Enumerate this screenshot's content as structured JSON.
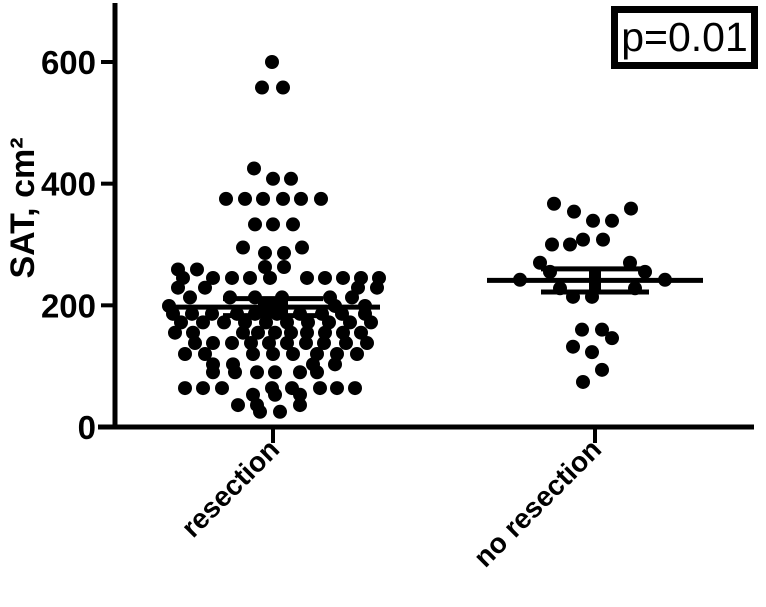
{
  "figure": {
    "p_label": "p=0.01",
    "background": "#ffffff",
    "ink": "#000000"
  },
  "chart_data": {
    "type": "scatter",
    "variant": "column-scatter-with-mean-sem-error-bars",
    "title": "",
    "xlabel": "",
    "ylabel": "SAT, cm²",
    "ylim": [
      0,
      700
    ],
    "yticks": [
      0,
      200,
      400,
      600
    ],
    "grid": false,
    "legend": null,
    "annotation": "p=0.01",
    "annotation_position": "top-right",
    "point_color": "#000000",
    "groups": [
      {
        "label": "resection",
        "mean": 197,
        "sem": 14,
        "points": [
          [
            600,
            -1
          ],
          [
            558,
            -11
          ],
          [
            558,
            10
          ],
          [
            425,
            -19
          ],
          [
            408,
            0
          ],
          [
            408,
            18
          ],
          [
            375,
            -47
          ],
          [
            375,
            -28
          ],
          [
            375,
            -10
          ],
          [
            375,
            10
          ],
          [
            375,
            28
          ],
          [
            375,
            48
          ],
          [
            333,
            -18
          ],
          [
            333,
            0
          ],
          [
            333,
            20
          ],
          [
            295,
            -30
          ],
          [
            295,
            29
          ],
          [
            286,
            -8
          ],
          [
            286,
            11
          ],
          [
            263,
            -8
          ],
          [
            263,
            11
          ],
          [
            259,
            -95
          ],
          [
            259,
            -76
          ],
          [
            245,
            -90
          ],
          [
            245,
            -60
          ],
          [
            245,
            -41
          ],
          [
            245,
            -23
          ],
          [
            245,
            -3
          ],
          [
            245,
            34
          ],
          [
            245,
            52
          ],
          [
            245,
            70
          ],
          [
            245,
            88
          ],
          [
            245,
            106
          ],
          [
            229,
            -95
          ],
          [
            229,
            -68
          ],
          [
            229,
            85
          ],
          [
            229,
            104
          ],
          [
            213,
            -83
          ],
          [
            213,
            -43
          ],
          [
            213,
            -18
          ],
          [
            213,
            9
          ],
          [
            213,
            57
          ],
          [
            213,
            79
          ],
          [
            199,
            -104
          ],
          [
            199,
            62
          ],
          [
            199,
            92
          ],
          [
            186,
            -100
          ],
          [
            186,
            -81
          ],
          [
            186,
            -61
          ],
          [
            186,
            -36
          ],
          [
            186,
            -18
          ],
          [
            186,
            4
          ],
          [
            186,
            27
          ],
          [
            186,
            49
          ],
          [
            186,
            69
          ],
          [
            186,
            92
          ],
          [
            172,
            -92
          ],
          [
            172,
            -70
          ],
          [
            172,
            -49
          ],
          [
            172,
            -28
          ],
          [
            172,
            -7
          ],
          [
            172,
            14
          ],
          [
            172,
            35
          ],
          [
            172,
            56
          ],
          [
            172,
            77
          ],
          [
            172,
            98
          ],
          [
            155,
            -98
          ],
          [
            155,
            -80
          ],
          [
            155,
            -30
          ],
          [
            155,
            -15
          ],
          [
            155,
            2
          ],
          [
            155,
            18
          ],
          [
            155,
            34
          ],
          [
            155,
            52
          ],
          [
            155,
            70
          ],
          [
            155,
            88
          ],
          [
            138,
            -78
          ],
          [
            138,
            -60
          ],
          [
            138,
            -41
          ],
          [
            138,
            -22
          ],
          [
            138,
            -4
          ],
          [
            138,
            14
          ],
          [
            138,
            33
          ],
          [
            138,
            51
          ],
          [
            138,
            73
          ],
          [
            138,
            94
          ],
          [
            120,
            -88
          ],
          [
            120,
            -68
          ],
          [
            120,
            -20
          ],
          [
            120,
            0
          ],
          [
            120,
            20
          ],
          [
            120,
            44
          ],
          [
            120,
            64
          ],
          [
            120,
            84
          ],
          [
            103,
            -60
          ],
          [
            103,
            -40
          ],
          [
            103,
            40
          ],
          [
            103,
            62
          ],
          [
            90,
            -60
          ],
          [
            90,
            -38
          ],
          [
            90,
            -16
          ],
          [
            90,
            2
          ],
          [
            90,
            27
          ],
          [
            90,
            44
          ],
          [
            64,
            -88
          ],
          [
            64,
            -70
          ],
          [
            64,
            -51
          ],
          [
            64,
            -1
          ],
          [
            64,
            19
          ],
          [
            64,
            47
          ],
          [
            64,
            64
          ],
          [
            64,
            82
          ],
          [
            53,
            -20
          ],
          [
            53,
            2
          ],
          [
            53,
            27
          ],
          [
            36,
            -35
          ],
          [
            36,
            -16
          ],
          [
            36,
            27
          ],
          [
            25,
            -13
          ],
          [
            25,
            7
          ]
        ]
      },
      {
        "label": "no resection",
        "mean": 241,
        "sem": 19,
        "points": [
          [
            367,
            -41
          ],
          [
            359,
            36
          ],
          [
            354,
            -21
          ],
          [
            339,
            -2
          ],
          [
            339,
            17
          ],
          [
            308,
            -12
          ],
          [
            308,
            8
          ],
          [
            300,
            -43
          ],
          [
            300,
            -25
          ],
          [
            270,
            -55
          ],
          [
            270,
            35
          ],
          [
            255,
            -45
          ],
          [
            255,
            50
          ],
          [
            242,
            -75
          ],
          [
            242,
            70
          ],
          [
            228,
            -35
          ],
          [
            228,
            40
          ],
          [
            214,
            -22
          ],
          [
            214,
            -3
          ],
          [
            160,
            -13
          ],
          [
            160,
            7
          ],
          [
            146,
            17
          ],
          [
            132,
            -22
          ],
          [
            123,
            -3
          ],
          [
            94,
            7
          ],
          [
            74,
            -12
          ]
        ]
      }
    ]
  }
}
